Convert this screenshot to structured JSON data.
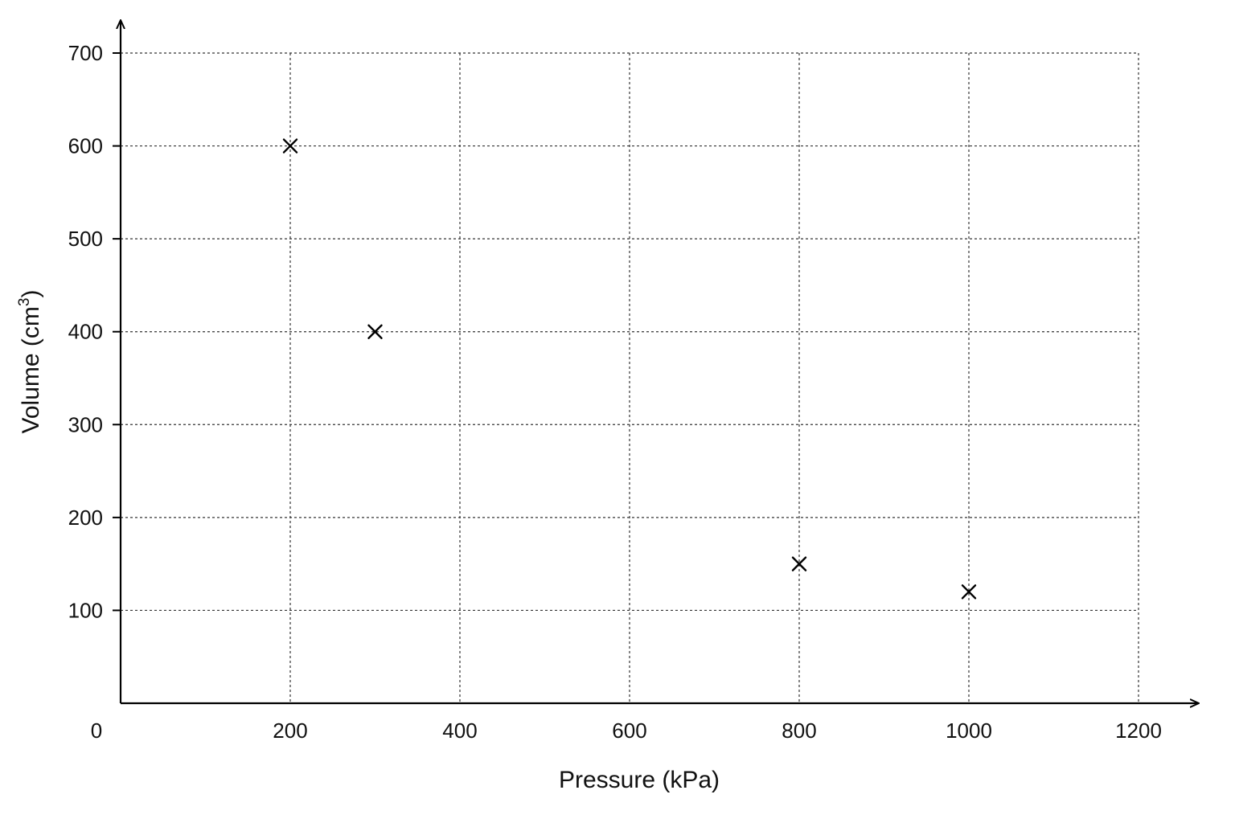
{
  "chart_data": {
    "type": "scatter",
    "title": "",
    "xlabel": "Pressure (kPa)",
    "ylabel_main": "Volume (cm",
    "ylabel_sup": "3",
    "ylabel_end": ")",
    "xlim": [
      0,
      1200
    ],
    "ylim": [
      0,
      700
    ],
    "x_ticks": [
      0,
      200,
      400,
      600,
      800,
      1000,
      1200
    ],
    "y_ticks": [
      100,
      200,
      300,
      400,
      500,
      600,
      700
    ],
    "grid": true,
    "marker": "x",
    "points": [
      {
        "x": 200,
        "y": 600
      },
      {
        "x": 300,
        "y": 400
      },
      {
        "x": 800,
        "y": 150
      },
      {
        "x": 1000,
        "y": 120
      }
    ]
  }
}
